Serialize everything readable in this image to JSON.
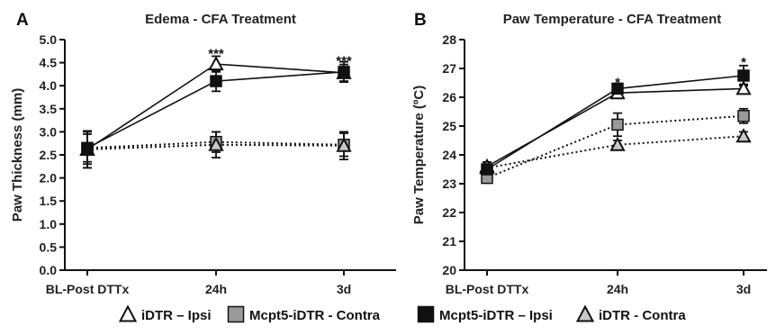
{
  "chart_data": [
    {
      "type": "line",
      "panel_label": "A",
      "title": "Edema - CFA Treatment",
      "xlabel": "",
      "ylabel": "Paw Thickness (mm)",
      "categories": [
        "BL-Post DTTx",
        "24h",
        "3d"
      ],
      "ylim": [
        0,
        5.0
      ],
      "yticks": [
        "0.0",
        "0.5",
        "1.0",
        "1.5",
        "2.0",
        "2.5",
        "3.0",
        "3.5",
        "4.0",
        "4.5",
        "5.0"
      ],
      "series": [
        {
          "name": "iDTR – Ipsi",
          "values": [
            2.62,
            4.47,
            4.28
          ],
          "errors": [
            0.4,
            0.17,
            0.18
          ],
          "marker": "triangle-open",
          "line": "solid"
        },
        {
          "name": "Mcpt5-iDTR - Contra",
          "values": [
            2.65,
            2.78,
            2.72
          ],
          "errors": [
            0.35,
            0.22,
            0.25
          ],
          "marker": "square-gray",
          "line": "dotted"
        },
        {
          "name": "Mcpt5-iDTR – Ipsi",
          "values": [
            2.65,
            4.1,
            4.3
          ],
          "errors": [
            0.3,
            0.22,
            0.22
          ],
          "marker": "square-black",
          "line": "solid"
        },
        {
          "name": "iDTR - Contra",
          "values": [
            2.62,
            2.72,
            2.7
          ],
          "errors": [
            0.4,
            0.28,
            0.3
          ],
          "marker": "triangle-gray",
          "line": "dotted"
        }
      ],
      "annotations": [
        {
          "category": "24h",
          "text": "***",
          "y": 4.72
        },
        {
          "category": "3d",
          "text": "***",
          "y": 4.56
        }
      ]
    },
    {
      "type": "line",
      "panel_label": "B",
      "title": "Paw Temperature - CFA Treatment",
      "xlabel": "",
      "ylabel": "Paw Temperature (ºC)",
      "categories": [
        "BL-Post DTTx",
        "24h",
        "3d"
      ],
      "ylim": [
        20,
        28
      ],
      "yticks": [
        "20",
        "21",
        "22",
        "23",
        "24",
        "25",
        "26",
        "27",
        "28"
      ],
      "series": [
        {
          "name": "iDTR – Ipsi",
          "values": [
            23.6,
            26.15,
            26.3
          ],
          "errors": [
            0.15,
            0.12,
            0.15
          ],
          "marker": "triangle-open",
          "line": "solid"
        },
        {
          "name": "Mcpt5-iDTR - Contra",
          "values": [
            23.2,
            25.05,
            25.35
          ],
          "errors": [
            0.15,
            0.4,
            0.25
          ],
          "marker": "square-gray",
          "line": "dotted"
        },
        {
          "name": "Mcpt5-iDTR – Ipsi",
          "values": [
            23.5,
            26.3,
            26.75
          ],
          "errors": [
            0.15,
            0.12,
            0.35
          ],
          "marker": "square-black",
          "line": "solid"
        },
        {
          "name": "iDTR - Contra",
          "values": [
            23.55,
            24.35,
            24.65
          ],
          "errors": [
            0.2,
            0.15,
            0.15
          ],
          "marker": "triangle-gray",
          "line": "dotted"
        }
      ],
      "annotations": [
        {
          "category": "24h",
          "text": "*",
          "y": 26.55
        },
        {
          "category": "3d",
          "text": "*",
          "y": 27.25
        }
      ]
    }
  ],
  "legend": {
    "placement": "bottom",
    "entries": [
      {
        "label": "iDTR – Ipsi",
        "marker": "triangle-open"
      },
      {
        "label": "Mcpt5-iDTR - Contra",
        "marker": "square-gray"
      },
      {
        "label": "Mcpt5-iDTR – Ipsi",
        "marker": "square-black"
      },
      {
        "label": "iDTR - Contra",
        "marker": "triangle-gray"
      }
    ]
  },
  "colors": {
    "axis": "#111111",
    "black_square": "#111111",
    "gray_square": "#9a9a9a",
    "gray_triangle": "#c8c8c8",
    "open_fill": "#ffffff"
  }
}
